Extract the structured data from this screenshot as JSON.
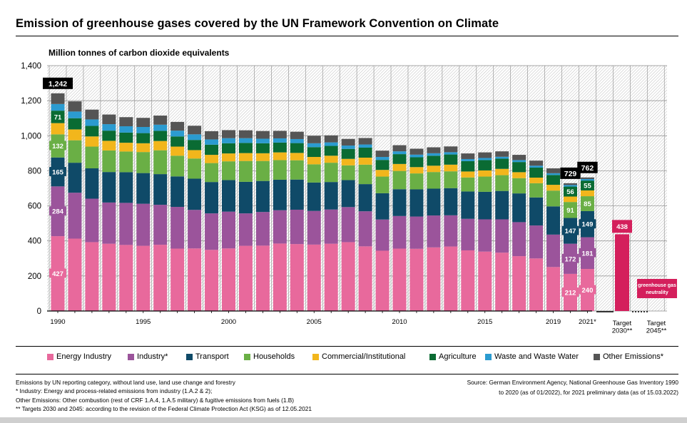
{
  "title": "Emission of greenhouse gases covered by the UN Framework Convention on Climate",
  "colors": {
    "energy": "#e8699c",
    "industry": "#9b549b",
    "transport": "#0f4a68",
    "households": "#6aaf45",
    "commercial": "#f2b61c",
    "agriculture": "#0a6b33",
    "waste": "#2b9bd0",
    "other": "#555555",
    "target": "#d41f5c"
  },
  "chart_data": {
    "type": "bar",
    "stacked": true,
    "ylabel": "Million tonnes of carbon dioxide equivalents",
    "ylim": [
      0,
      1400
    ],
    "yticks": [
      "0",
      "200",
      "400",
      "600",
      "800",
      "1,000",
      "1,200",
      "1,400"
    ],
    "categories": [
      "1990",
      "1991",
      "1992",
      "1993",
      "1994",
      "1995",
      "1996",
      "1997",
      "1998",
      "1999",
      "2000",
      "2001",
      "2002",
      "2003",
      "2004",
      "2005",
      "2006",
      "2007",
      "2008",
      "2009",
      "2010",
      "2011",
      "2012",
      "2013",
      "2014",
      "2015",
      "2016",
      "2017",
      "2018",
      "2019",
      "2020",
      "2021*"
    ],
    "xtick_labels": [
      {
        "index": 0,
        "label": "1990"
      },
      {
        "index": 5,
        "label": "1995"
      },
      {
        "index": 10,
        "label": "2000"
      },
      {
        "index": 15,
        "label": "2005"
      },
      {
        "index": 20,
        "label": "2010"
      },
      {
        "index": 25,
        "label": "2015"
      },
      {
        "index": 29,
        "label": "2019"
      },
      {
        "index": 31,
        "label": "2021*"
      }
    ],
    "series": [
      {
        "name": "Energy Industry",
        "color_key": "energy",
        "values": [
          427,
          413,
          393,
          384,
          377,
          372,
          378,
          356,
          357,
          349,
          357,
          372,
          373,
          385,
          382,
          379,
          384,
          393,
          369,
          344,
          356,
          355,
          363,
          368,
          346,
          339,
          333,
          313,
          300,
          251,
          212,
          240
        ]
      },
      {
        "name": "Industry*",
        "color_key": "industry",
        "values": [
          284,
          262,
          248,
          235,
          240,
          240,
          228,
          238,
          220,
          208,
          210,
          185,
          192,
          190,
          196,
          192,
          195,
          200,
          200,
          178,
          186,
          184,
          182,
          178,
          180,
          184,
          190,
          194,
          188,
          185,
          172,
          181
        ]
      },
      {
        "name": "Transport",
        "color_key": "transport",
        "values": [
          165,
          171,
          173,
          174,
          175,
          175,
          175,
          174,
          178,
          179,
          180,
          180,
          177,
          174,
          172,
          162,
          157,
          154,
          155,
          150,
          153,
          155,
          153,
          155,
          156,
          157,
          162,
          164,
          160,
          161,
          147,
          149
        ]
      },
      {
        "name": "Households",
        "color_key": "households",
        "values": [
          132,
          128,
          124,
          123,
          118,
          120,
          136,
          118,
          115,
          108,
          107,
          119,
          114,
          112,
          110,
          104,
          110,
          84,
          111,
          95,
          104,
          91,
          95,
          96,
          80,
          87,
          90,
          87,
          81,
          90,
          91,
          85
        ]
      },
      {
        "name": "Commercial/Institutional",
        "color_key": "commercial",
        "values": [
          64,
          62,
          58,
          55,
          50,
          50,
          53,
          52,
          48,
          47,
          45,
          45,
          44,
          44,
          42,
          42,
          40,
          37,
          40,
          38,
          40,
          36,
          36,
          38,
          34,
          35,
          36,
          34,
          32,
          33,
          31,
          33
        ]
      },
      {
        "name": "Agriculture",
        "color_key": "agriculture",
        "values": [
          71,
          64,
          60,
          58,
          58,
          58,
          58,
          58,
          58,
          58,
          58,
          58,
          57,
          56,
          56,
          56,
          56,
          57,
          57,
          57,
          56,
          56,
          57,
          58,
          59,
          59,
          58,
          58,
          57,
          56,
          56,
          55
        ]
      },
      {
        "name": "Waste and Waste Water",
        "color_key": "waste",
        "values": [
          38,
          38,
          37,
          37,
          36,
          35,
          35,
          33,
          32,
          30,
          29,
          27,
          26,
          24,
          23,
          22,
          20,
          19,
          18,
          17,
          16,
          15,
          14,
          13,
          12,
          12,
          11,
          11,
          11,
          10,
          10,
          10
        ]
      },
      {
        "name": "Other Emissions*",
        "color_key": "other",
        "values": [
          61,
          58,
          56,
          55,
          52,
          52,
          52,
          50,
          49,
          47,
          46,
          45,
          44,
          43,
          42,
          42,
          40,
          38,
          37,
          36,
          35,
          34,
          34,
          33,
          32,
          32,
          31,
          30,
          29,
          28,
          10,
          9
        ]
      }
    ],
    "totals_labeled": [
      {
        "index": 0,
        "label": "1,242"
      },
      {
        "index": 30,
        "label": "729"
      },
      {
        "index": 31,
        "label": "762"
      }
    ],
    "segment_labels": [
      {
        "index": 0,
        "series": 0,
        "label": "427"
      },
      {
        "index": 0,
        "series": 1,
        "label": "284"
      },
      {
        "index": 0,
        "series": 2,
        "label": "165"
      },
      {
        "index": 0,
        "series": 3,
        "label": "132"
      },
      {
        "index": 0,
        "series": 5,
        "label": "71"
      },
      {
        "index": 30,
        "series": 0,
        "label": "212"
      },
      {
        "index": 30,
        "series": 1,
        "label": "172"
      },
      {
        "index": 30,
        "series": 2,
        "label": "147"
      },
      {
        "index": 30,
        "series": 3,
        "label": "91"
      },
      {
        "index": 30,
        "series": 5,
        "label": "56"
      },
      {
        "index": 31,
        "series": 0,
        "label": "240"
      },
      {
        "index": 31,
        "series": 1,
        "label": "181"
      },
      {
        "index": 31,
        "series": 2,
        "label": "149"
      },
      {
        "index": 31,
        "series": 3,
        "label": "85"
      },
      {
        "index": 31,
        "series": 5,
        "label": "55"
      }
    ],
    "targets": [
      {
        "label": "Target\n2030**",
        "value": 438,
        "value_label": "438"
      },
      {
        "label": "Target\n2045**",
        "value": 0,
        "value_label": "greenhouse gas\nneutrality"
      }
    ]
  },
  "legend": [
    {
      "label": "Energy Industry",
      "color_key": "energy"
    },
    {
      "label": "Industry*",
      "color_key": "industry"
    },
    {
      "label": "Transport",
      "color_key": "transport"
    },
    {
      "label": "Households",
      "color_key": "households"
    },
    {
      "label": "Commercial/Institutional",
      "color_key": "commercial"
    },
    {
      "label": "Agriculture",
      "color_key": "agriculture"
    },
    {
      "label": "Waste and Waste Water",
      "color_key": "waste"
    },
    {
      "label": "Other Emissions*",
      "color_key": "other"
    }
  ],
  "footnotes": [
    "Emissions by UN reporting category, without land use, land use change and forestry",
    "* Industry: Energy and process-related emissions from industry (1.A.2 & 2);",
    "Other Emissions: Other combustion (rest of CRF 1.A.4, 1.A.5 military) & fugitive emissions from fuels (1.B)",
    "** Targets 2030 and 2045: according to the revision of the Federal Climate Protection Act (KSG) as of 12.05.2021"
  ],
  "source_lines": [
    "Source: German Environment Agency, National Greenhouse Gas Inventory  1990",
    "to 2020 (as of 01/2022), for 2021 preliminary data (as of 15.03.2022)"
  ]
}
